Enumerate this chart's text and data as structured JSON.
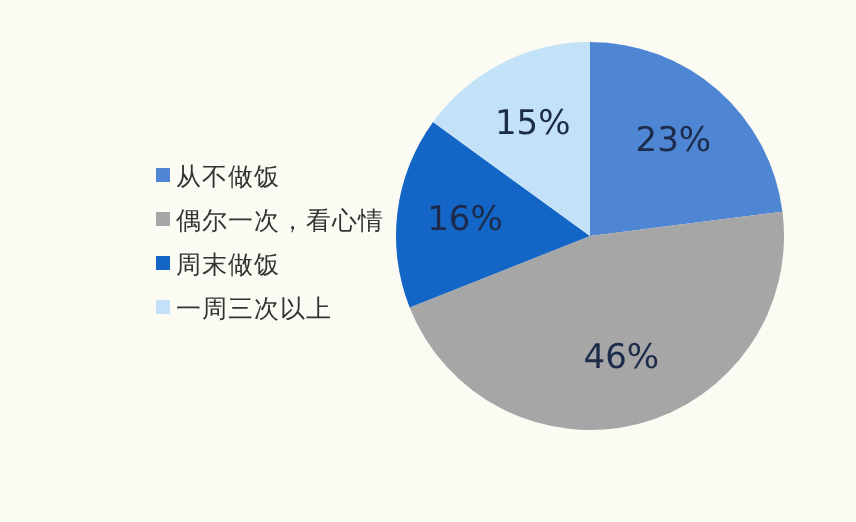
{
  "chart_data": {
    "type": "pie",
    "categories": [
      "从不做饭",
      "偶尔一次，看心情",
      "周末做饭",
      "一周三次以上"
    ],
    "values": [
      23,
      46,
      16,
      15
    ],
    "colors": [
      "#4f86d4",
      "#a6a6a6",
      "#1466c6",
      "#c3e2f8"
    ],
    "value_labels": [
      "23%",
      "46%",
      "16%",
      "15%"
    ],
    "legend": "left"
  }
}
